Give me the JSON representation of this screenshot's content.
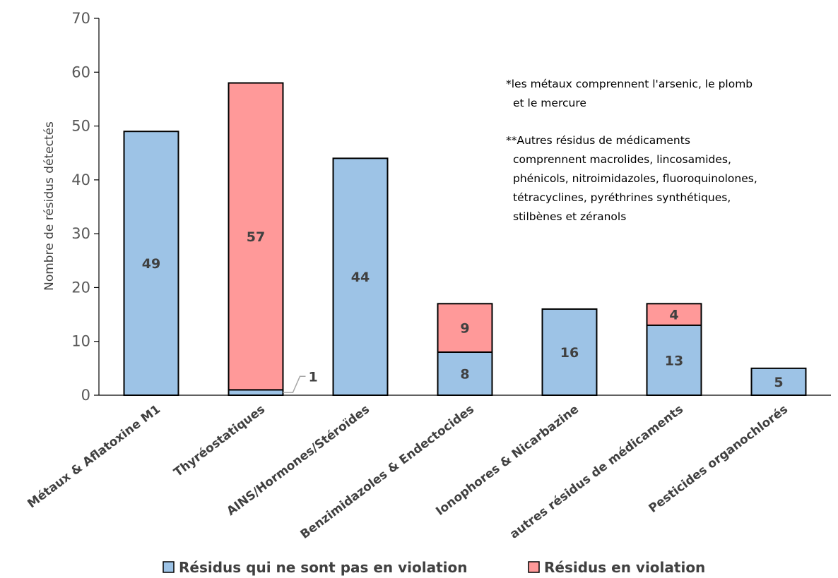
{
  "chart_data": {
    "type": "bar",
    "stacked": true,
    "categories": [
      "Métaux & Aflatoxine M1",
      "Thyréostatiques",
      "AINS/Hormones/Stéroïdes",
      "Benzimidazoles & Endectocides",
      "Ionophores & Nicarbazine",
      "autres résidus de médicaments",
      "Pesticides organochlorés"
    ],
    "series": [
      {
        "name": "Résidus qui ne sont pas en violation",
        "color": "#9dc3e6",
        "values": [
          49,
          1,
          44,
          8,
          16,
          13,
          5
        ]
      },
      {
        "name": "Résidus en violation",
        "color": "#ff9999",
        "values": [
          0,
          57,
          0,
          9,
          0,
          4,
          0
        ]
      }
    ],
    "data_labels": [
      [
        "49",
        "1",
        "44",
        "8",
        "16",
        "13",
        "5"
      ],
      [
        "",
        "57",
        "",
        "9",
        "",
        "4",
        ""
      ]
    ],
    "ylabel": "Nombre de résidus détectés",
    "ylim": [
      0,
      70
    ],
    "yticks": [
      0,
      10,
      20,
      30,
      40,
      50,
      60,
      70
    ],
    "grid": false,
    "legend_position": "bottom",
    "annotations": [
      "*les métaux comprennent l'arsenic, le plomb",
      "et le mercure",
      "**Autres résidus de médicaments",
      "comprennent macrolides, lincosamides,",
      "phénicols, nitroimidazoles, fluoroquinolones,",
      "tétracyclines, pyréthrines synthétiques,",
      "stilbènes et zéranols"
    ]
  }
}
